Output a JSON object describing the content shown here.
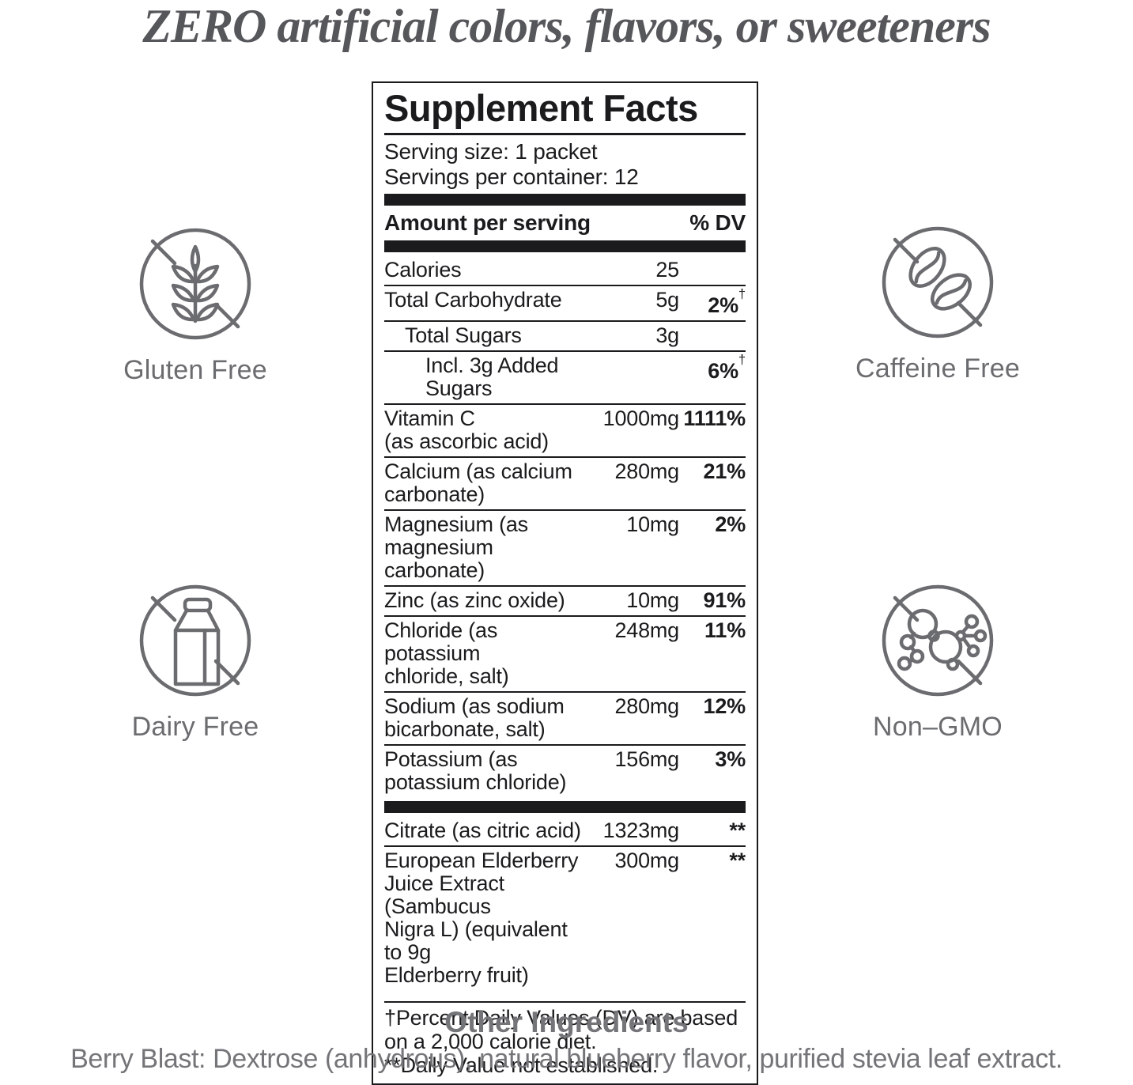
{
  "headline": "ZERO artificial colors, flavors, or sweeteners",
  "badges": [
    {
      "id": "gluten-free",
      "label": "Gluten Free",
      "icon": "wheat-icon"
    },
    {
      "id": "caffeine-free",
      "label": "Caffeine Free",
      "icon": "coffee-beans-icon"
    },
    {
      "id": "dairy-free",
      "label": "Dairy Free",
      "icon": "milk-carton-icon"
    },
    {
      "id": "non-gmo",
      "label": "Non–GMO",
      "icon": "molecules-icon"
    }
  ],
  "panel": {
    "title": "Supplement Facts",
    "serving_size": "Serving size: 1 packet",
    "servings_per_container": "Servings per container: 12",
    "amount_header": "Amount per serving",
    "dv_header": "% DV",
    "dagger": "†",
    "rows": [
      {
        "name": "Calories",
        "amount": "25",
        "dv": "",
        "indent": 0
      },
      {
        "name": "Total Carbohydrate",
        "amount": "5g",
        "dv": "2%",
        "dagger": true,
        "indent": 0
      },
      {
        "name": "Total Sugars",
        "amount": "3g",
        "dv": "",
        "indent": 1
      },
      {
        "name": "Incl. 3g Added Sugars",
        "amount": "",
        "dv": "6%",
        "dagger": true,
        "indent": 2
      },
      {
        "name": "Vitamin C\n(as ascorbic acid)",
        "amount": "1000mg",
        "dv": "1111%",
        "indent": 0
      },
      {
        "name": "Calcium (as calcium\ncarbonate)",
        "amount": "280mg",
        "dv": "21%",
        "indent": 0
      },
      {
        "name": "Magnesium (as\nmagnesium carbonate)",
        "amount": "10mg",
        "dv": "2%",
        "indent": 0
      },
      {
        "name": "Zinc (as zinc oxide)",
        "amount": "10mg",
        "dv": "91%",
        "indent": 0
      },
      {
        "name": "Chloride (as potassium\nchloride, salt)",
        "amount": "248mg",
        "dv": "11%",
        "indent": 0
      },
      {
        "name": "Sodium (as sodium\nbicarbonate, salt)",
        "amount": "280mg",
        "dv": "12%",
        "indent": 0
      },
      {
        "name": "Potassium (as\npotassium chloride)",
        "amount": "156mg",
        "dv": "3%",
        "indent": 0
      },
      {
        "name": "Citrate (as citric acid)",
        "amount": "1323mg",
        "dv": "**",
        "indent": 0,
        "bar_before": true
      },
      {
        "name": "European Elderberry\nJuice Extract (Sambucus\nNigra L) (equivalent to 9g\nElderberry fruit)",
        "amount": "300mg",
        "dv": "**",
        "indent": 0
      }
    ],
    "footnote": "†Percent Daily Values (DV) are based\non a 2,000 calorie diet.\n**Daily Value not established."
  },
  "other": {
    "title": "Other Ingredients",
    "text": "Berry Blast: Dextrose (anhydrous), natural blueberry flavor, purified stevia leaf extract."
  },
  "colors": {
    "panel_ink": "#1b1b1d",
    "headline_grey": "#56575b",
    "badge_grey": "#6b6c6f",
    "footer_grey": "#747579",
    "background": "#ffffff"
  }
}
